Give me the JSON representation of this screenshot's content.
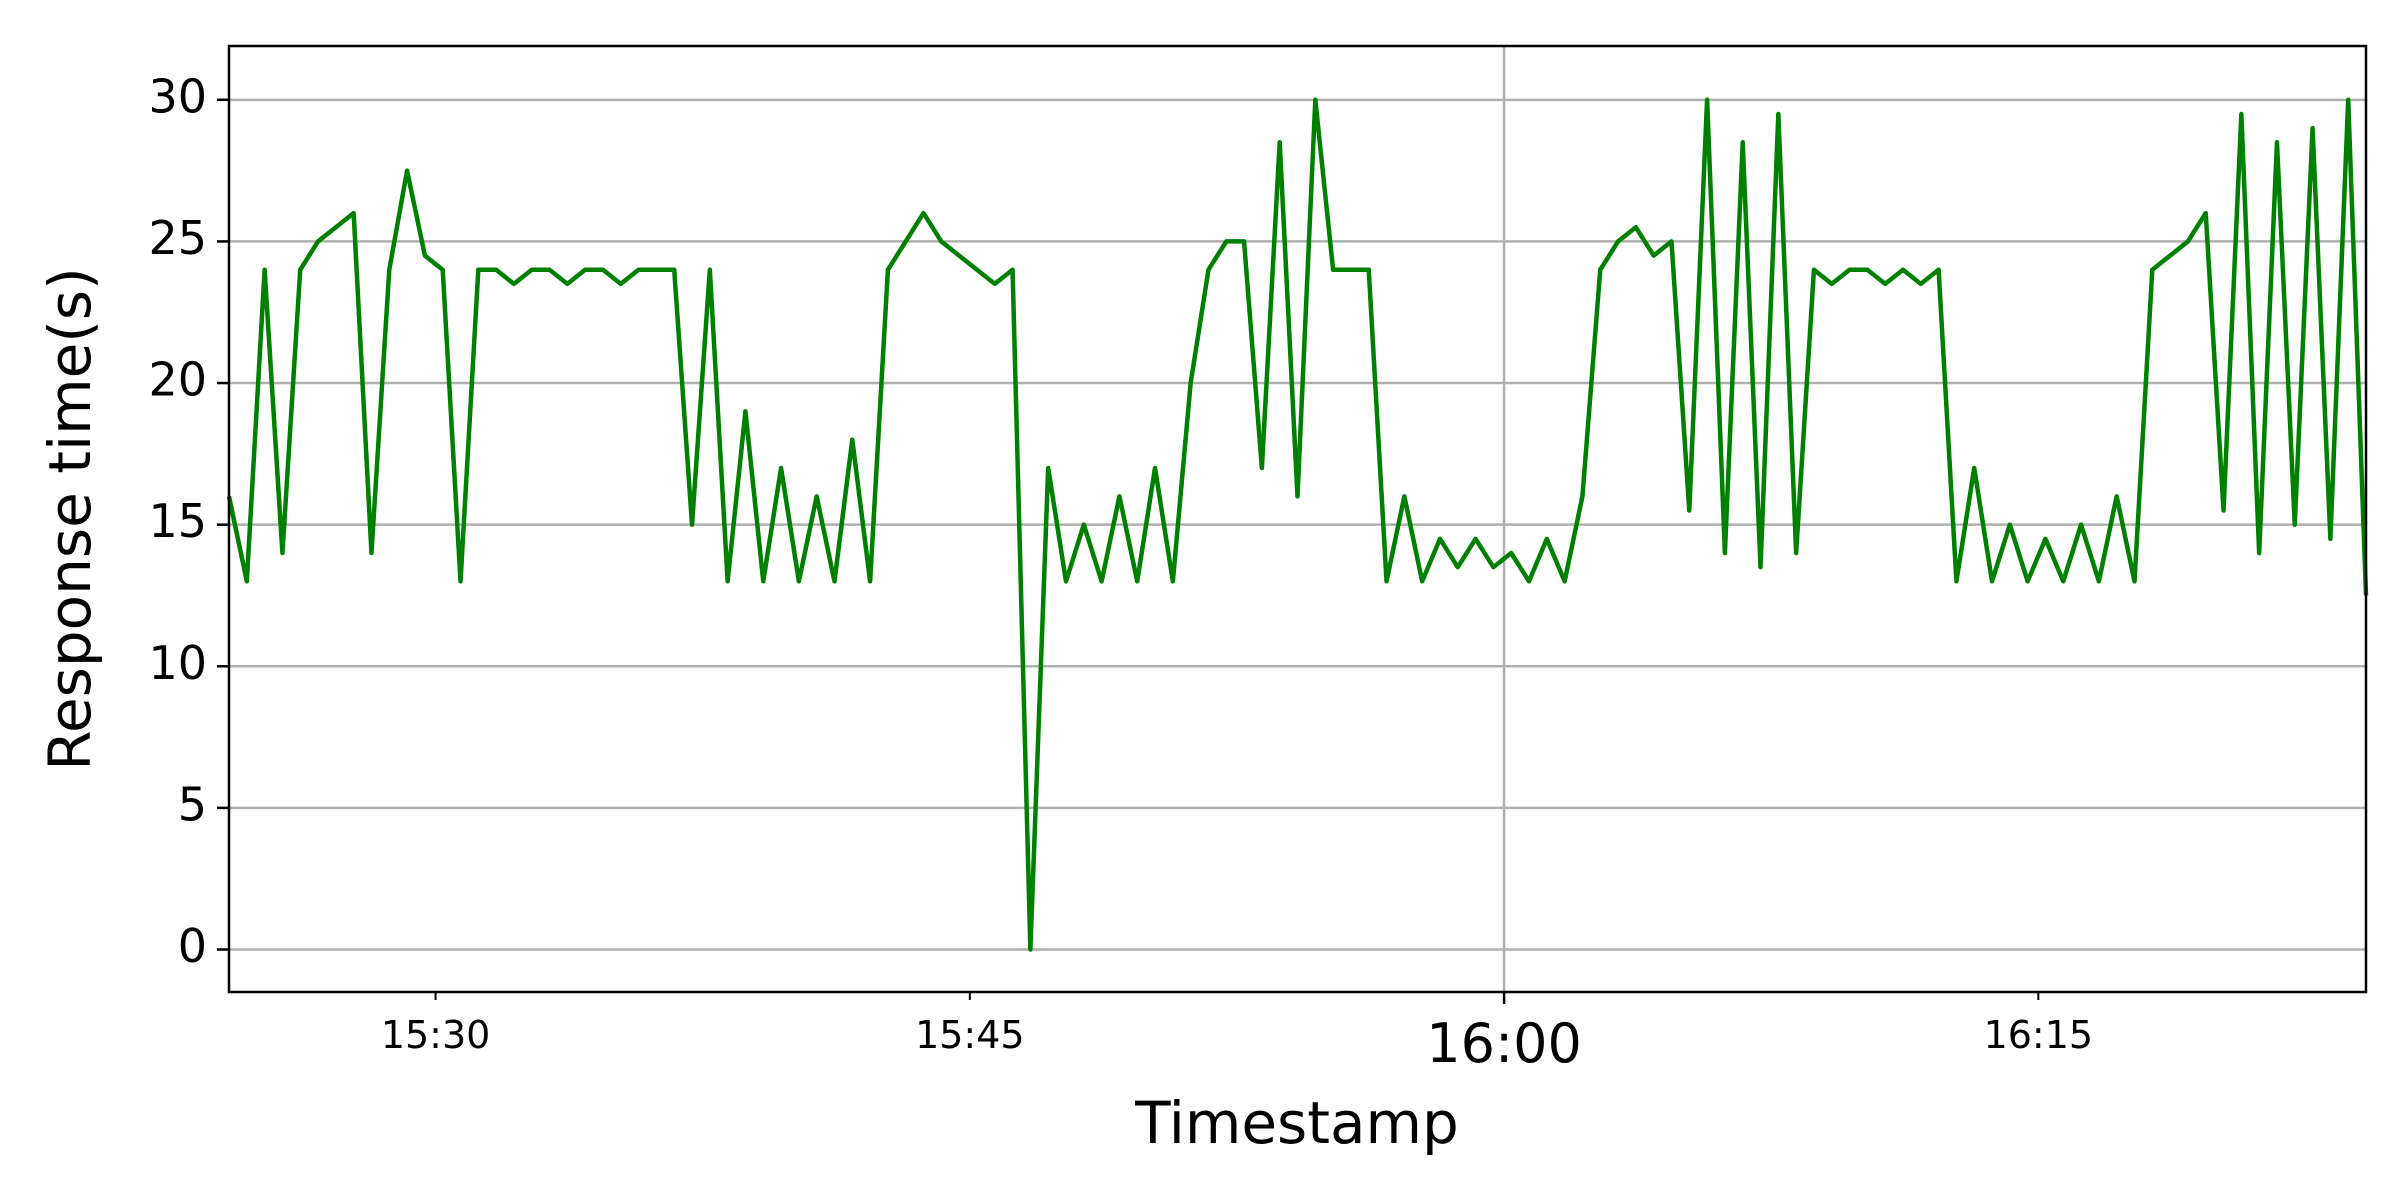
{
  "chart_data": {
    "type": "line",
    "xlabel": "Timestamp",
    "ylabel": "Response time(s)",
    "color": "#008000",
    "grid": true,
    "xlim": [
      924.2,
      984.2
    ],
    "ylim": [
      -1.5,
      31.9
    ],
    "yticks": [
      0,
      5,
      10,
      15,
      20,
      25,
      30
    ],
    "x_major_ticks": [
      {
        "value": 960,
        "label": "16:00"
      }
    ],
    "x_minor_ticks": [
      {
        "value": 930,
        "label": "15:30"
      },
      {
        "value": 945,
        "label": "15:45"
      },
      {
        "value": 975,
        "label": "16:15"
      }
    ],
    "x": [
      924.2,
      924.7,
      925.2,
      925.7,
      926.2,
      926.7,
      927.2,
      927.7,
      928.2,
      928.7,
      929.2,
      929.7,
      930.2,
      930.7,
      931.2,
      931.7,
      932.2,
      932.7,
      933.2,
      933.7,
      934.2,
      934.7,
      935.2,
      935.7,
      936.2,
      936.7,
      937.2,
      937.7,
      938.2,
      938.7,
      939.2,
      939.7,
      940.2,
      940.7,
      941.2,
      941.7,
      942.2,
      942.7,
      943.2,
      943.7,
      944.2,
      944.7,
      945.2,
      945.7,
      946.2,
      946.7,
      947.2,
      947.7,
      948.2,
      948.7,
      949.2,
      949.7,
      950.2,
      950.7,
      951.2,
      951.7,
      952.2,
      952.7,
      953.2,
      953.7,
      954.2,
      954.7,
      955.2,
      955.7,
      956.2,
      956.7,
      957.2,
      957.7,
      958.2,
      958.7,
      959.2,
      959.7,
      960.2,
      960.7,
      961.2,
      961.7,
      962.2,
      962.7,
      963.2,
      963.7,
      964.2,
      964.7,
      965.2,
      965.7,
      966.2,
      966.7,
      967.2,
      967.7,
      968.2,
      968.7,
      969.2,
      969.7,
      970.2,
      970.7,
      971.2,
      971.7,
      972.2,
      972.7,
      973.2,
      973.7,
      974.2,
      974.7,
      975.2,
      975.7,
      976.2,
      976.7,
      977.2,
      977.7,
      978.2,
      978.7,
      979.2,
      979.7,
      980.2,
      980.7,
      981.2,
      981.7,
      982.2,
      982.7,
      983.2,
      983.7,
      984.2
    ],
    "values": [
      16,
      13,
      24,
      14,
      24,
      25,
      25.5,
      26,
      14,
      24,
      27.5,
      24.5,
      24,
      13,
      24,
      24,
      23.5,
      24,
      24,
      23.5,
      24,
      24,
      23.5,
      24,
      24,
      24,
      15,
      24,
      13,
      19,
      13,
      17,
      13,
      16,
      13,
      18,
      13,
      24,
      25,
      26,
      25,
      24.5,
      24,
      23.5,
      24,
      0,
      17,
      13,
      15,
      13,
      16,
      13,
      17,
      13,
      20,
      24,
      25,
      25,
      17,
      28.5,
      16,
      30,
      24,
      24,
      24,
      13,
      16,
      13,
      14.5,
      13.5,
      14.5,
      13.5,
      14,
      13,
      14.5,
      13,
      16,
      24,
      25,
      25.5,
      24.5,
      25,
      15.5,
      30,
      14,
      28.5,
      13.5,
      29.5,
      14,
      24,
      23.5,
      24,
      24,
      23.5,
      24,
      23.5,
      24,
      13,
      17,
      13,
      15,
      13,
      14.5,
      13,
      15,
      13,
      16,
      13,
      24,
      24.5,
      25,
      26,
      15.5,
      29.5,
      14,
      28.5,
      15,
      29,
      14.5,
      30,
      12.5
    ]
  }
}
